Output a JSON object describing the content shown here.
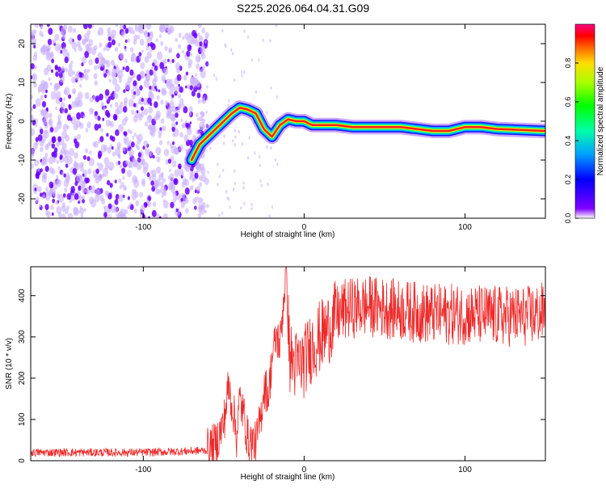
{
  "page_title": "S225.2026.064.04.31.G09",
  "chart_data": [
    {
      "type": "heatmap",
      "name": "spectrogram",
      "xlabel": "Height of straight line (km)",
      "ylabel": "Frequency (Hz)",
      "xlim": [
        -170,
        150
      ],
      "ylim": [
        -25,
        25
      ],
      "xticks": [
        -100,
        0,
        100
      ],
      "yticks": [
        -20,
        -10,
        0,
        10,
        20
      ],
      "colorbar": {
        "label": "Normalized spectral amplitude",
        "range": [
          0,
          1
        ],
        "ticks": [
          0.0,
          0.2,
          0.4,
          0.6,
          0.8
        ]
      },
      "ridge": {
        "x": [
          -70,
          -65,
          -60,
          -55,
          -50,
          -45,
          -40,
          -35,
          -30,
          -25,
          -20,
          -15,
          -10,
          -5,
          0,
          5,
          10,
          20,
          30,
          40,
          50,
          60,
          70,
          80,
          90,
          100,
          110,
          120,
          150
        ],
        "frequency": [
          -10,
          -6,
          -4,
          -2,
          0,
          2,
          3.5,
          3,
          2,
          -2,
          -4,
          -1,
          0.5,
          0,
          0,
          -1,
          -1,
          -1,
          -1.5,
          -1.5,
          -1.5,
          -1.5,
          -2,
          -2.5,
          -2.5,
          -1.5,
          -1.5,
          -2,
          -2.5
        ]
      },
      "noise_region_x": [
        -170,
        -65
      ]
    },
    {
      "type": "line",
      "name": "snr",
      "xlabel": "Height of straight line (km)",
      "ylabel": "SNR (10 * v/v)",
      "xlim": [
        -170,
        150
      ],
      "ylim": [
        0,
        470
      ],
      "xticks": [
        -100,
        0,
        100
      ],
      "yticks": [
        0,
        100,
        200,
        300,
        400
      ],
      "color": "#ee2a2a",
      "series": [
        {
          "name": "SNR",
          "x": [
            -170,
            -140,
            -100,
            -80,
            -60,
            -55,
            -50,
            -47,
            -44,
            -42,
            -40,
            -37,
            -35,
            -30,
            -27,
            -25,
            -22,
            -20,
            -17,
            -15,
            -13,
            -11,
            -10,
            -9,
            -5,
            0,
            5,
            10,
            15,
            20,
            25,
            30,
            40,
            60,
            80,
            100,
            120,
            140,
            150
          ],
          "y": [
            20,
            20,
            20,
            22,
            25,
            40,
            90,
            180,
            120,
            60,
            150,
            100,
            50,
            40,
            100,
            180,
            160,
            250,
            300,
            280,
            380,
            470,
            350,
            250,
            230,
            240,
            280,
            300,
            320,
            350,
            365,
            370,
            375,
            365,
            355,
            355,
            350,
            350,
            360
          ]
        }
      ]
    }
  ],
  "colors": {
    "axis": "#000000",
    "line": "#ee2a2a",
    "noise": "#6a00ff",
    "noise_light": "#c9b0ff"
  }
}
